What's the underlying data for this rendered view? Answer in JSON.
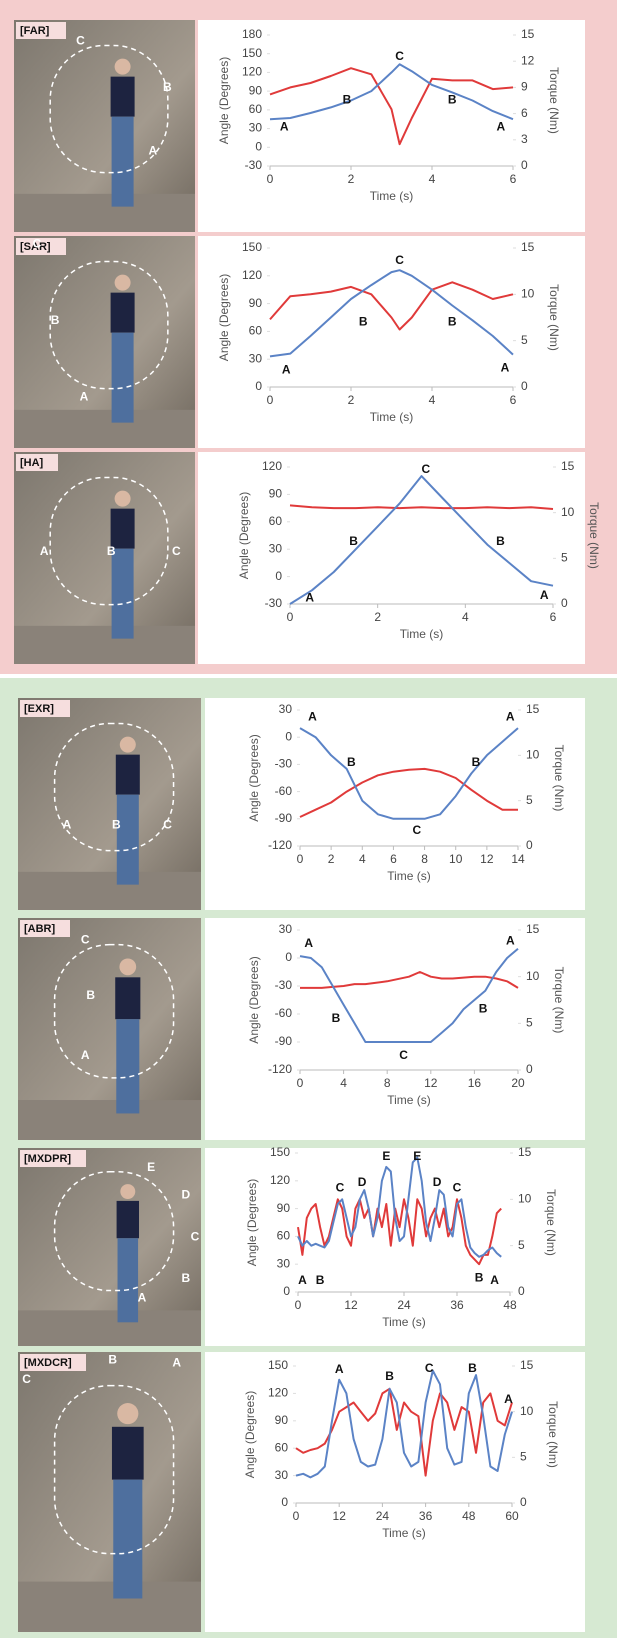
{
  "chart_data": [
    {
      "type": "line",
      "title": "[FAR]",
      "xlabel": "Time (s)",
      "ylabel": "Angle (Degrees)",
      "y2label": "Torque (Nm)",
      "x": [
        0,
        0.5,
        1,
        1.5,
        2,
        2.5,
        3,
        3.2,
        3.5,
        4,
        4.5,
        5,
        5.5,
        6
      ],
      "series": [
        {
          "color": "#5b83c6",
          "values": [
            45,
            47,
            55,
            64,
            75,
            90,
            120,
            133,
            122,
            100,
            88,
            75,
            58,
            45
          ]
        },
        {
          "color": "#e03a3a",
          "axis": "y2",
          "values": [
            8.2,
            9,
            9.5,
            10.3,
            11.2,
            10.5,
            6.5,
            2.5,
            5.5,
            10,
            9.8,
            9.8,
            8.8,
            9
          ]
        }
      ],
      "xlim": [
        0,
        6
      ],
      "xticks": [
        0,
        2,
        4,
        6
      ],
      "ylim": [
        -30,
        180
      ],
      "yticks": [
        -30,
        0,
        30,
        60,
        90,
        120,
        150,
        180
      ],
      "y2lim": [
        0,
        15
      ],
      "y2ticks": [
        0,
        3,
        6,
        9,
        12,
        15
      ],
      "annotations": [
        {
          "text": "A",
          "x": 0.35,
          "y": 32
        },
        {
          "text": "B",
          "x": 1.9,
          "y": 75
        },
        {
          "text": "C",
          "x": 3.2,
          "y": 145
        },
        {
          "text": "B",
          "x": 4.5,
          "y": 75
        },
        {
          "text": "A",
          "x": 5.7,
          "y": 32
        }
      ],
      "photo_labels": [
        "C",
        "B",
        "A"
      ]
    },
    {
      "type": "line",
      "title": "[SAR]",
      "xlabel": "Time (s)",
      "ylabel": "Angle (Degrees)",
      "y2label": "Torque (Nm)",
      "x": [
        0,
        0.5,
        1,
        1.5,
        2,
        2.5,
        3,
        3.2,
        3.5,
        4,
        4.5,
        5,
        5.5,
        6
      ],
      "series": [
        {
          "color": "#5b83c6",
          "values": [
            33,
            36,
            55,
            75,
            95,
            110,
            124,
            126,
            120,
            105,
            88,
            72,
            55,
            35
          ]
        },
        {
          "color": "#e03a3a",
          "axis": "y2",
          "values": [
            7.3,
            9.8,
            10,
            10.3,
            10.8,
            10,
            7.5,
            6.2,
            7.5,
            10.5,
            11.3,
            10.5,
            9.5,
            10
          ]
        }
      ],
      "xlim": [
        0,
        6
      ],
      "xticks": [
        0,
        2,
        4,
        6
      ],
      "ylim": [
        0,
        150
      ],
      "yticks": [
        0,
        30,
        60,
        90,
        120,
        150
      ],
      "y2lim": [
        0,
        15
      ],
      "y2ticks": [
        0,
        5,
        10,
        15
      ],
      "annotations": [
        {
          "text": "A",
          "x": 0.4,
          "y": 18
        },
        {
          "text": "B",
          "x": 2.3,
          "y": 70
        },
        {
          "text": "C",
          "x": 3.2,
          "y": 136
        },
        {
          "text": "B",
          "x": 4.5,
          "y": 70
        },
        {
          "text": "A",
          "x": 5.8,
          "y": 20
        }
      ],
      "photo_labels": [
        "C",
        "B",
        "A"
      ]
    },
    {
      "type": "line",
      "title": "[HA]",
      "xlabel": "Time (s)",
      "ylabel": "Angle (Degrees)",
      "y2label": "Torque (Nm)",
      "x": [
        0,
        0.5,
        1,
        1.5,
        2,
        2.5,
        3,
        3.5,
        4,
        4.5,
        5,
        5.5,
        6
      ],
      "series": [
        {
          "color": "#5b83c6",
          "values": [
            -30,
            -15,
            5,
            30,
            55,
            80,
            110,
            85,
            60,
            35,
            15,
            -5,
            -10
          ]
        },
        {
          "color": "#e03a3a",
          "axis": "y2",
          "values": [
            10.8,
            10.6,
            10.5,
            10.5,
            10.6,
            10.5,
            10.6,
            10.5,
            10.5,
            10.6,
            10.5,
            10.6,
            10.4
          ]
        }
      ],
      "xlim": [
        0,
        6
      ],
      "xticks": [
        0,
        2,
        4,
        6
      ],
      "ylim": [
        -30,
        120
      ],
      "yticks": [
        -30,
        0,
        30,
        60,
        90,
        120
      ],
      "y2lim": [
        0,
        15
      ],
      "y2ticks": [
        0,
        5,
        10,
        15
      ],
      "annotations": [
        {
          "text": "A",
          "x": 0.45,
          "y": -24
        },
        {
          "text": "B",
          "x": 1.45,
          "y": 38
        },
        {
          "text": "C",
          "x": 3.1,
          "y": 117
        },
        {
          "text": "B",
          "x": 4.8,
          "y": 38
        },
        {
          "text": "A",
          "x": 5.8,
          "y": -21
        }
      ],
      "photo_labels": [
        "A",
        "B",
        "C"
      ]
    },
    {
      "type": "line",
      "title": "[EXR]",
      "xlabel": "Time (s)",
      "ylabel": "Angle (Degrees)",
      "y2label": "Torque (Nm)",
      "x": [
        0,
        1,
        2,
        3,
        4,
        5,
        6,
        7,
        8,
        9,
        10,
        11,
        12,
        13,
        14
      ],
      "series": [
        {
          "color": "#5b83c6",
          "values": [
            10,
            0,
            -20,
            -35,
            -70,
            -85,
            -90,
            -90,
            -90,
            -85,
            -65,
            -40,
            -20,
            -5,
            10
          ]
        },
        {
          "color": "#e03a3a",
          "axis": "y2",
          "values": [
            3.2,
            4,
            4.8,
            6,
            7,
            7.8,
            8.2,
            8.4,
            8.5,
            8.2,
            7.5,
            6.2,
            5,
            4,
            4
          ]
        }
      ],
      "xlim": [
        0,
        14
      ],
      "xticks": [
        0,
        2,
        4,
        6,
        8,
        10,
        12,
        14
      ],
      "ylim": [
        -120,
        30
      ],
      "yticks": [
        -120,
        -90,
        -60,
        -30,
        0,
        30
      ],
      "y2lim": [
        0,
        15
      ],
      "y2ticks": [
        0,
        5,
        10,
        15
      ],
      "annotations": [
        {
          "text": "A",
          "x": 0.8,
          "y": 22
        },
        {
          "text": "B",
          "x": 3.3,
          "y": -28
        },
        {
          "text": "C",
          "x": 7.5,
          "y": -103
        },
        {
          "text": "B",
          "x": 11.3,
          "y": -28
        },
        {
          "text": "A",
          "x": 13.5,
          "y": 22
        }
      ],
      "photo_labels": [
        "A",
        "B",
        "C"
      ]
    },
    {
      "type": "line",
      "title": "[ABR]",
      "xlabel": "Time (s)",
      "ylabel": "Angle (Degrees)",
      "y2label": "Torque (Nm)",
      "x": [
        0,
        1,
        2,
        3,
        4,
        5,
        6,
        8,
        10,
        11,
        12,
        13,
        14,
        15,
        16,
        17,
        18,
        19,
        20
      ],
      "series": [
        {
          "color": "#5b83c6",
          "values": [
            2,
            0,
            -10,
            -30,
            -50,
            -70,
            -90,
            -90,
            -90,
            -90,
            -90,
            -80,
            -70,
            -55,
            -45,
            -35,
            -15,
            0,
            10
          ]
        },
        {
          "color": "#e03a3a",
          "axis": "y2",
          "values": [
            8.8,
            8.8,
            8.8,
            8.9,
            9,
            9.2,
            9.2,
            9.5,
            10,
            10.5,
            10,
            9.8,
            9.8,
            9.9,
            10,
            10,
            9.8,
            9.5,
            8.8
          ]
        }
      ],
      "xlim": [
        0,
        20
      ],
      "xticks": [
        0,
        4,
        8,
        12,
        16,
        20
      ],
      "ylim": [
        -120,
        30
      ],
      "yticks": [
        -120,
        -90,
        -60,
        -30,
        0,
        30
      ],
      "y2lim": [
        0,
        15
      ],
      "y2ticks": [
        0,
        5,
        10,
        15
      ],
      "annotations": [
        {
          "text": "A",
          "x": 0.8,
          "y": 15
        },
        {
          "text": "B",
          "x": 3.3,
          "y": -65
        },
        {
          "text": "C",
          "x": 9.5,
          "y": -105
        },
        {
          "text": "B",
          "x": 16.8,
          "y": -55
        },
        {
          "text": "A",
          "x": 19.3,
          "y": 18
        }
      ],
      "photo_labels": [
        "C",
        "B",
        "A"
      ]
    },
    {
      "type": "line",
      "title": "[MXDPR]",
      "xlabel": "Time (s)",
      "ylabel": "Angle (Degrees)",
      "y2label": "Torque (Nm)",
      "x": [
        0,
        1,
        2,
        3,
        4,
        5,
        6,
        7,
        8,
        9,
        10,
        11,
        12,
        13,
        14,
        15,
        16,
        17,
        18,
        19,
        20,
        21,
        22,
        23,
        24,
        25,
        26,
        27,
        28,
        29,
        30,
        31,
        32,
        33,
        34,
        35,
        36,
        37,
        38,
        39,
        40,
        41,
        42,
        43,
        44,
        45,
        46
      ],
      "series": [
        {
          "color": "#5b83c6",
          "values": [
            60,
            50,
            55,
            50,
            52,
            50,
            48,
            55,
            75,
            95,
            100,
            80,
            60,
            70,
            100,
            110,
            90,
            60,
            80,
            120,
            135,
            130,
            80,
            55,
            60,
            100,
            140,
            145,
            120,
            75,
            55,
            80,
            110,
            105,
            70,
            60,
            95,
            100,
            70,
            48,
            42,
            38,
            40,
            45,
            48,
            42,
            38
          ]
        },
        {
          "color": "#e03a3a",
          "axis": "y2",
          "values": [
            7,
            4,
            8,
            9,
            9.5,
            7,
            5,
            6,
            8,
            10,
            9,
            6,
            5,
            9,
            10,
            8,
            9,
            6,
            9,
            7,
            9.5,
            5,
            9,
            7,
            10,
            8,
            5,
            10,
            9,
            6,
            8,
            9,
            7,
            9,
            6,
            7,
            10,
            8,
            5,
            4,
            3.5,
            3,
            4,
            4,
            6,
            8.5,
            9
          ]
        }
      ],
      "xlim": [
        0,
        48
      ],
      "xticks": [
        0,
        12,
        24,
        36,
        48
      ],
      "ylim": [
        0,
        150
      ],
      "yticks": [
        0,
        30,
        60,
        90,
        120,
        150
      ],
      "y2lim": [
        0,
        15
      ],
      "y2ticks": [
        0,
        5,
        10,
        15
      ],
      "annotations": [
        {
          "text": "A",
          "x": 1,
          "y": 12
        },
        {
          "text": "B",
          "x": 5,
          "y": 12
        },
        {
          "text": "C",
          "x": 9.5,
          "y": 112
        },
        {
          "text": "D",
          "x": 14.5,
          "y": 118
        },
        {
          "text": "E",
          "x": 20,
          "y": 146
        },
        {
          "text": "E",
          "x": 27,
          "y": 146
        },
        {
          "text": "D",
          "x": 31.5,
          "y": 118
        },
        {
          "text": "C",
          "x": 36,
          "y": 112
        },
        {
          "text": "B",
          "x": 41,
          "y": 15
        },
        {
          "text": "A",
          "x": 44.5,
          "y": 12
        }
      ],
      "photo_labels": [
        "E",
        "D",
        "C",
        "B",
        "A"
      ]
    },
    {
      "type": "line",
      "title": "[MXDCR]",
      "xlabel": "Time (s)",
      "ylabel": "Angle (Degrees)",
      "y2label": "Torque (Nm)",
      "x": [
        0,
        2,
        4,
        6,
        8,
        10,
        12,
        14,
        16,
        18,
        20,
        22,
        24,
        26,
        28,
        30,
        32,
        34,
        36,
        38,
        40,
        42,
        44,
        46,
        48,
        50,
        52,
        54,
        56,
        58,
        60
      ],
      "series": [
        {
          "color": "#5b83c6",
          "values": [
            30,
            32,
            28,
            32,
            40,
            90,
            135,
            120,
            70,
            45,
            40,
            42,
            70,
            125,
            110,
            55,
            40,
            45,
            110,
            145,
            130,
            60,
            42,
            45,
            120,
            140,
            95,
            40,
            35,
            75,
            100
          ]
        },
        {
          "color": "#e03a3a",
          "axis": "y2",
          "values": [
            6,
            5.5,
            5.8,
            6,
            6.5,
            8,
            10,
            10.5,
            11,
            10,
            9,
            9.8,
            12,
            12.5,
            8,
            11,
            10,
            9.5,
            3,
            9,
            12,
            11,
            8,
            10.5,
            10,
            5.5,
            11,
            12,
            9,
            8.5,
            11
          ]
        }
      ],
      "xlim": [
        0,
        60
      ],
      "xticks": [
        0,
        12,
        24,
        36,
        48,
        60
      ],
      "ylim": [
        0,
        150
      ],
      "yticks": [
        0,
        30,
        60,
        90,
        120,
        150
      ],
      "y2lim": [
        0,
        15
      ],
      "y2ticks": [
        0,
        5,
        10,
        15
      ],
      "annotations": [
        {
          "text": "A",
          "x": 12,
          "y": 146
        },
        {
          "text": "B",
          "x": 26,
          "y": 138
        },
        {
          "text": "C",
          "x": 37,
          "y": 147
        },
        {
          "text": "B",
          "x": 49,
          "y": 147
        },
        {
          "text": "A",
          "x": 59,
          "y": 113
        }
      ],
      "photo_labels": [
        "B",
        "A",
        "C"
      ]
    }
  ]
}
